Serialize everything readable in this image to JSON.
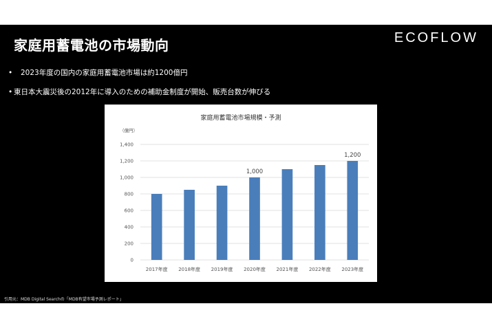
{
  "slide": {
    "title": "家庭用蓄電池の市場動向",
    "logo": "ECOFLOW",
    "bullets": [
      "2023年度の国内の家庭用蓄電池市場は約1200億円",
      "東日本大震災後の2012年に導入のための補助金制度が開始、販売台数が伸びる"
    ],
    "bullet_marker": "•",
    "source": "引用元：MDB Digital Searchの「MDB有望市場予測レポート」"
  },
  "colors": {
    "bar": "#4a7ebb",
    "background": "#000000",
    "chart_bg": "#ffffff",
    "grid": "#d9d9d9"
  },
  "chart_data": {
    "type": "bar",
    "title": "家庭用蓄電池市場規模・予測",
    "ylabel": "（億円）",
    "xlabel": "",
    "categories": [
      "2017年度",
      "2018年度",
      "2019年度",
      "2020年度",
      "2021年度",
      "2022年度",
      "2023年度"
    ],
    "values": [
      800,
      850,
      900,
      1000,
      1100,
      1150,
      1200
    ],
    "yticks": [
      "0",
      "200",
      "400",
      "600",
      "800",
      "1,000",
      "1,200",
      "1,400"
    ],
    "ylim": [
      0,
      1400
    ],
    "data_labels": [
      {
        "index": 3,
        "text": "1,000"
      },
      {
        "index": 6,
        "text": "1,200"
      }
    ],
    "grid": true
  }
}
